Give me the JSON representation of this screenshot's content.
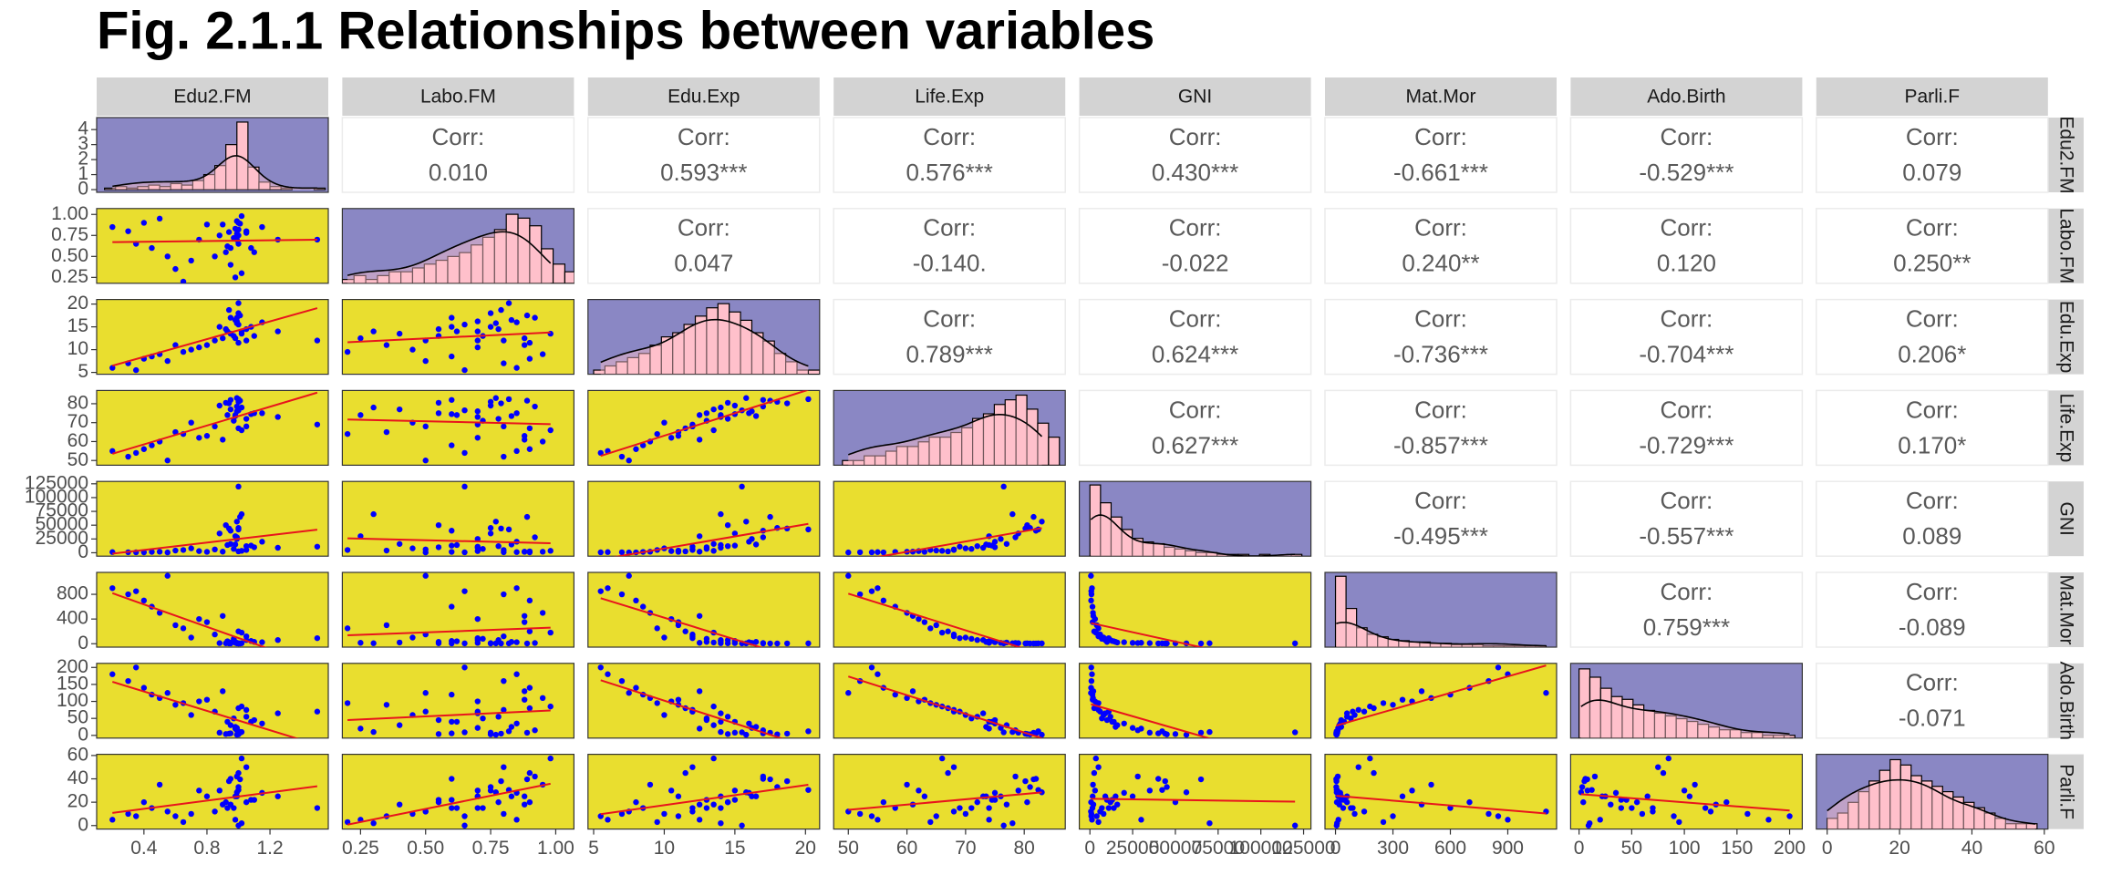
{
  "chart_data": {
    "type": "scatter-matrix",
    "title": "Fig. 2.1.1 Relationships between variables",
    "corr_label": "Corr:",
    "point_color": "#0000ff",
    "line_color": "#e8141c",
    "scatter_background": "#e9de2f",
    "diagonal_background": "#8a87c4",
    "hist_fill": "#ffc0cb",
    "hist_edge": "#000000",
    "strip_background": "#d3d3d3",
    "variables": [
      {
        "name": "Edu2.FM",
        "lim": [
          0.1,
          1.57
        ],
        "xticks": [
          0.4,
          0.8,
          1.2
        ],
        "yticks": [
          0,
          1,
          2,
          3,
          4
        ],
        "values": [
          1.01,
          1.0,
          0.99,
          0.94,
          0.99,
          0.93,
          1.05,
          0.85,
          0.6,
          0.45,
          0.3,
          0.2,
          1.1,
          0.95,
          0.98,
          1.02,
          0.75,
          0.5,
          1.0,
          1.25,
          0.88,
          0.7,
          1.15,
          0.4,
          0.95,
          1.0,
          0.97,
          0.65,
          1.05,
          0.92,
          1.5,
          0.8,
          1.02,
          0.98,
          0.55,
          1.0,
          0.9,
          1.08,
          0.99,
          0.35
        ],
        "hist": {
          "ylim": [
            -0.18,
            4.8
          ],
          "bins": [
            0.15,
            0.22,
            0.29,
            0.36,
            0.43,
            0.5,
            0.57,
            0.64,
            0.71,
            0.78,
            0.85,
            0.92,
            0.99,
            1.06,
            1.13,
            1.2,
            1.27,
            1.34,
            1.41,
            1.48,
            1.55
          ],
          "heights": [
            0.1,
            0.2,
            0.1,
            0.2,
            0.3,
            0.2,
            0.4,
            0.3,
            0.6,
            1.0,
            1.6,
            3.0,
            4.5,
            1.5,
            0.5,
            0.2,
            0.1,
            0,
            0,
            0.1
          ]
        }
      },
      {
        "name": "Labo.FM",
        "lim": [
          0.18,
          1.07
        ],
        "xticks": [
          {
            "value": 0.25,
            "label": "0.25"
          },
          {
            "value": 0.5,
            "label": "0.50"
          },
          {
            "value": 0.75,
            "label": "0.75"
          },
          {
            "value": 1,
            "label": "1.00"
          }
        ],
        "yticks": [
          {
            "value": 0.25,
            "label": "0.25"
          },
          {
            "value": 0.5,
            "label": "0.50"
          },
          {
            "value": 0.75,
            "label": "0.75"
          },
          {
            "value": 1,
            "label": "1.00"
          }
        ],
        "values": [
          0.89,
          0.82,
          0.77,
          0.79,
          0.7,
          0.62,
          0.78,
          0.5,
          0.35,
          0.6,
          0.8,
          0.85,
          0.55,
          0.4,
          0.25,
          0.3,
          0.7,
          0.95,
          0.9,
          0.7,
          0.75,
          0.45,
          0.85,
          0.9,
          0.6,
          0.65,
          0.72,
          0.2,
          0.8,
          0.55,
          0.7,
          0.88,
          0.98,
          0.83,
          0.5,
          0.75,
          0.88,
          0.6,
          0.92,
          0.65
        ],
        "hist": {
          "ylim": [
            0,
            19.5
          ],
          "bins": [
            0.18,
            0.225,
            0.27,
            0.315,
            0.36,
            0.405,
            0.45,
            0.495,
            0.54,
            0.585,
            0.63,
            0.675,
            0.72,
            0.765,
            0.81,
            0.855,
            0.9,
            0.945,
            0.99,
            1.035,
            1.08
          ],
          "heights": [
            1,
            2,
            1,
            2,
            3,
            3,
            4,
            5,
            6,
            7,
            8,
            10,
            12,
            14,
            18,
            17,
            15,
            9,
            5,
            3
          ]
        }
      },
      {
        "name": "Edu.Exp",
        "lim": [
          4.6,
          21
        ],
        "xticks": [
          5,
          10,
          15,
          20
        ],
        "yticks": [
          5,
          10,
          15,
          20
        ],
        "values": [
          17.5,
          20.2,
          15.8,
          18.7,
          16.2,
          14.0,
          14.5,
          12.0,
          11.0,
          8.5,
          7.0,
          6.0,
          13.0,
          13.5,
          12.5,
          14.0,
          10.5,
          9.0,
          11.5,
          14.0,
          15.0,
          10.0,
          16.0,
          8.0,
          17.0,
          15.5,
          13.0,
          9.5,
          12.0,
          14.5,
          12.0,
          11.0,
          13.5,
          16.5,
          7.5,
          18.0,
          12.5,
          15.0,
          17.0,
          5.5
        ],
        "hist": {
          "ylim": [
            0,
            18
          ],
          "bins": [
            5,
            5.8,
            6.6,
            7.4,
            8.2,
            9,
            9.8,
            10.6,
            11.4,
            12.2,
            13,
            13.8,
            14.6,
            15.4,
            16.2,
            17,
            17.8,
            18.6,
            19.4,
            20.2,
            21
          ],
          "heights": [
            1,
            2,
            3,
            4,
            5,
            7,
            9,
            10,
            12,
            14,
            16,
            17,
            15,
            13,
            10,
            8,
            5,
            3,
            1,
            1
          ]
        }
      },
      {
        "name": "Life.Exp",
        "lim": [
          47.5,
          87
        ],
        "xticks": [
          50,
          60,
          70,
          80
        ],
        "yticks": [
          50,
          60,
          70,
          80
        ],
        "values": [
          81.6,
          82.4,
          83.0,
          80.2,
          76.0,
          74.0,
          72.0,
          68.0,
          65.0,
          58.0,
          52.0,
          55.0,
          75.0,
          77.0,
          74.0,
          78.0,
          62.0,
          60.0,
          67.0,
          73.0,
          79.0,
          70.0,
          75.0,
          56.0,
          82.0,
          76.5,
          71.0,
          64.0,
          68.0,
          80.5,
          69.0,
          63.0,
          66.0,
          73.5,
          50.0,
          81.0,
          61.0,
          74.5,
          78.5,
          54.0
        ],
        "hist": {
          "ylim": [
            0,
            16
          ],
          "bins": [
            49,
            50.85,
            52.7,
            54.55,
            56.4,
            58.25,
            60.1,
            61.95,
            63.8,
            65.65,
            67.5,
            69.35,
            71.2,
            73.05,
            74.9,
            76.75,
            78.6,
            80.45,
            82.3,
            84.15,
            86
          ],
          "heights": [
            1,
            1,
            2,
            2,
            3,
            4,
            4,
            5,
            6,
            6,
            7,
            8,
            10,
            11,
            13,
            14,
            15,
            12,
            9,
            6
          ]
        }
      },
      {
        "name": "GNI",
        "lim": [
          -6200,
          129300
        ],
        "xticks": [
          0,
          25000,
          50000,
          75000,
          100000,
          125000
        ],
        "yticks": [
          0,
          25000,
          50000,
          75000,
          100000,
          125000
        ],
        "values": [
          64992,
          42261,
          56431,
          44025,
          25000,
          14000,
          12000,
          6000,
          4000,
          1500,
          900,
          1200,
          10000,
          16000,
          30000,
          70000,
          3000,
          1800,
          2500,
          9000,
          35000,
          8000,
          20000,
          700,
          40000,
          120000,
          7000,
          5000,
          5000,
          50000,
          11000,
          1600,
          3500,
          15000,
          600,
          45000,
          2000,
          13000,
          28000,
          800
        ],
        "hist": {
          "ylim": [
            0,
            42
          ],
          "bins": [
            0,
            6200,
            12400,
            18600,
            24800,
            31000,
            37200,
            43400,
            49600,
            55800,
            62000,
            68200,
            74400,
            80600,
            86800,
            93000,
            99200,
            105400,
            111600,
            117800,
            124000
          ],
          "heights": [
            40,
            30,
            22,
            15,
            10,
            8,
            7,
            5,
            4,
            3,
            2,
            2,
            1,
            1,
            1,
            0,
            1,
            0,
            0,
            1
          ]
        }
      },
      {
        "name": "Mat.Mor",
        "lim": [
          -55,
          1155
        ],
        "xticks": [
          0,
          300,
          600,
          900
        ],
        "yticks": [
          0,
          400,
          800
        ],
        "values": [
          4,
          6,
          6,
          5,
          14,
          40,
          60,
          150,
          300,
          600,
          800,
          900,
          30,
          20,
          15,
          8,
          400,
          500,
          200,
          60,
          10,
          100,
          25,
          700,
          5,
          6,
          80,
          250,
          120,
          7,
          90,
          350,
          180,
          30,
          1100,
          4,
          450,
          45,
          12,
          850
        ],
        "hist": {
          "ylim": [
            0,
            58
          ],
          "bins": [
            0,
            55,
            110,
            165,
            220,
            275,
            330,
            385,
            440,
            495,
            550,
            605,
            660,
            715,
            770,
            825,
            880,
            935,
            990,
            1045,
            1100
          ],
          "heights": [
            55,
            30,
            15,
            10,
            8,
            6,
            5,
            4,
            4,
            3,
            3,
            2,
            2,
            2,
            1,
            1,
            1,
            1,
            1,
            1
          ]
        }
      },
      {
        "name": "Ado.Birth",
        "lim": [
          -8,
          212
        ],
        "xticks": [
          0,
          50,
          100,
          150,
          200
        ],
        "yticks": [
          0,
          50,
          100,
          150,
          200
        ],
        "values": [
          7.8,
          12.1,
          1.9,
          5.1,
          22,
          40,
          55,
          70,
          90,
          120,
          160,
          180,
          45,
          30,
          20,
          10,
          100,
          110,
          80,
          65,
          8,
          60,
          35,
          140,
          6,
          9,
          50,
          95,
          75,
          4,
          70,
          105,
          85,
          25,
          125,
          3,
          130,
          40,
          15,
          200
        ],
        "hist": {
          "ylim": [
            0,
            27
          ],
          "bins": [
            0,
            10.25,
            20.5,
            30.75,
            41,
            51.25,
            61.5,
            71.75,
            82,
            92.25,
            102.5,
            112.75,
            123,
            133.25,
            143.5,
            153.75,
            164,
            174.25,
            184.5,
            194.75,
            205
          ],
          "heights": [
            25,
            22,
            18,
            15,
            14,
            12,
            10,
            9,
            8,
            7,
            6,
            5,
            4,
            3,
            3,
            2,
            2,
            1,
            1,
            1
          ]
        }
      },
      {
        "name": "Parli.F",
        "lim": [
          -3,
          61
        ],
        "xticks": [
          0,
          20,
          40,
          60
        ],
        "yticks": [
          0,
          20,
          40,
          60
        ],
        "values": [
          39.6,
          30.5,
          28.5,
          38,
          25,
          15,
          20,
          12,
          8,
          15,
          10,
          5,
          22,
          18,
          5,
          2,
          30,
          35,
          45,
          25,
          30,
          10,
          28,
          20,
          40,
          0,
          15,
          3,
          50,
          20,
          15,
          25,
          57.5,
          25,
          12,
          33,
          18,
          22,
          42,
          8
        ],
        "hist": {
          "ylim": [
            0,
            14
          ],
          "bins": [
            0,
            2.9,
            5.8,
            8.7,
            11.6,
            14.5,
            17.4,
            20.3,
            23.2,
            26.1,
            29,
            31.9,
            34.8,
            37.7,
            40.6,
            43.5,
            46.4,
            49.3,
            52.2,
            55.1,
            58
          ],
          "heights": [
            2,
            3,
            5,
            7,
            9,
            11,
            13,
            12,
            10,
            9,
            8,
            7,
            6,
            5,
            4,
            3,
            2,
            1,
            1,
            1
          ]
        }
      }
    ],
    "correlations": [
      [
        "0.010",
        "0.593***",
        "0.576***",
        "0.430***",
        "-0.661***",
        "-0.529***",
        "0.079"
      ],
      [
        "0.047",
        "-0.140.",
        "-0.022",
        "0.240**",
        "0.120",
        "0.250**"
      ],
      [
        "0.789***",
        "0.624***",
        "-0.736***",
        "-0.704***",
        "0.206*"
      ],
      [
        "0.627***",
        "-0.857***",
        "-0.729***",
        "0.170*"
      ],
      [
        "-0.495***",
        "-0.557***",
        "0.089"
      ],
      [
        "0.759***",
        "-0.089"
      ],
      [
        "-0.071"
      ]
    ]
  }
}
